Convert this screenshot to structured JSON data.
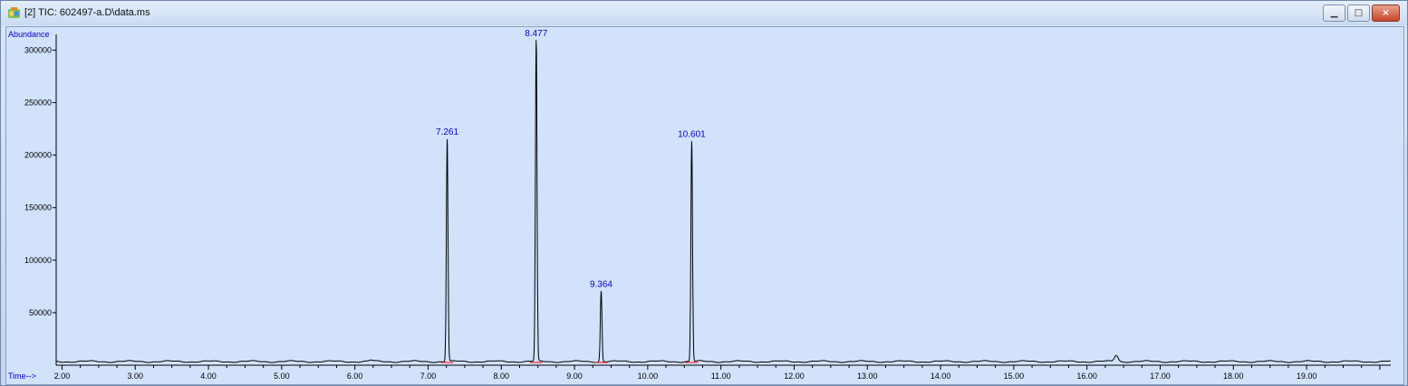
{
  "window": {
    "title": "[2] TIC: 602497-a.D\\data.ms",
    "icons": {
      "app": "chromatogram-app-icon",
      "minimize": "minimize-icon",
      "maximize": "maximize-icon",
      "close": "close-icon"
    },
    "colors": {
      "plot_background": "#d2e2fb",
      "trace": "#000000",
      "label_text": "#0000cc",
      "baseline_marker": "#ff0000",
      "close_button": "#c74528"
    }
  },
  "chart_data": {
    "type": "line",
    "ylabel": "Abundance",
    "xlabel": "Time-->",
    "xlim": [
      1.92,
      20.15
    ],
    "ylim": [
      0,
      315000
    ],
    "x_ticks": [
      "2.00",
      "3.00",
      "4.00",
      "5.00",
      "6.00",
      "7.00",
      "8.00",
      "9.00",
      "10.00",
      "11.00",
      "12.00",
      "13.00",
      "14.00",
      "15.00",
      "16.00",
      "17.00",
      "18.00",
      "19.00"
    ],
    "y_ticks": [
      "50000",
      "100000",
      "150000",
      "200000",
      "250000",
      "300000"
    ],
    "baseline": 3500,
    "peaks": [
      {
        "rt": 7.261,
        "label": "7.261",
        "height": 216000
      },
      {
        "rt": 8.477,
        "label": "8.477",
        "height": 310000
      },
      {
        "rt": 9.364,
        "label": "9.364",
        "height": 71000
      },
      {
        "rt": 10.601,
        "label": "10.601",
        "height": 214000
      }
    ],
    "minor_peaks": [
      {
        "rt": 6.22,
        "height": 4500
      },
      {
        "rt": 16.4,
        "height": 9500
      }
    ],
    "grid": false,
    "legend": "none"
  }
}
